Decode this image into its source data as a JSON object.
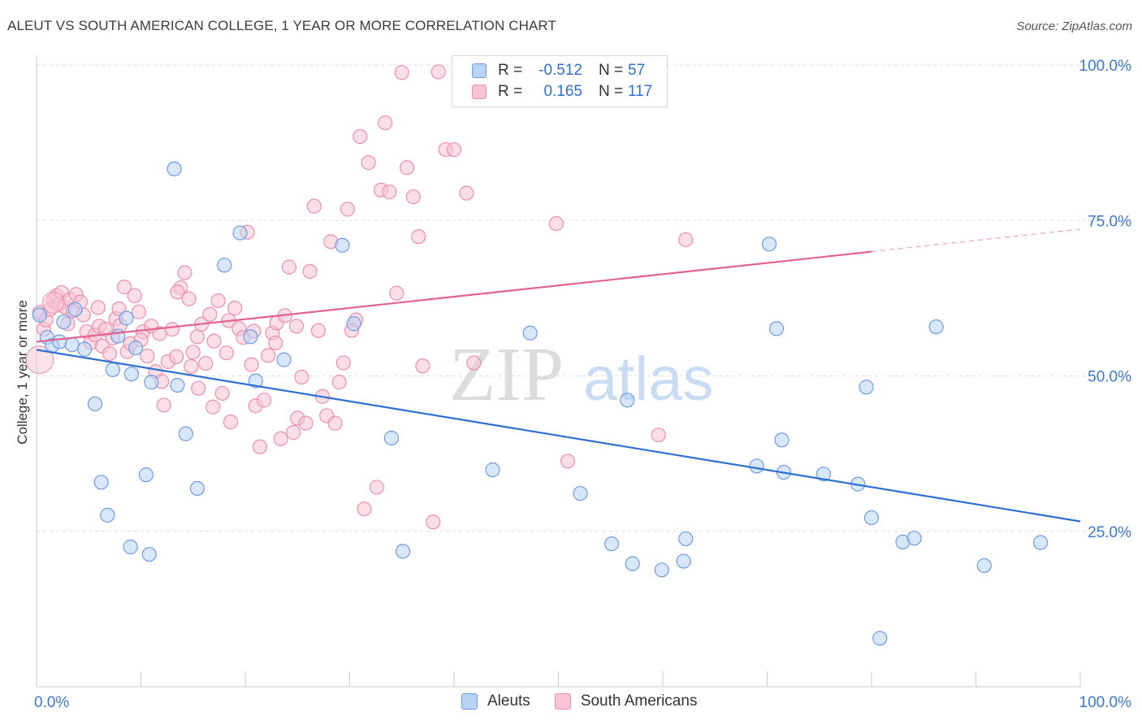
{
  "header": {
    "title": "ALEUT VS SOUTH AMERICAN COLLEGE, 1 YEAR OR MORE CORRELATION CHART",
    "source": "Source: ZipAtlas.com"
  },
  "watermark": {
    "zip": "ZIP",
    "atlas": "atlas"
  },
  "legend": {
    "series": [
      {
        "name": "Aleuts",
        "r_label": "R =",
        "r_value": "-0.512",
        "n_label": "N =",
        "n_value": "57",
        "fill": "#b9d3f5",
        "stroke": "#6d9be3"
      },
      {
        "name": "South Americans",
        "r_label": "R =",
        "r_value": "0.165",
        "n_label": "N =",
        "n_value": "117",
        "fill": "#f8c3d2",
        "stroke": "#ec8fac"
      }
    ]
  },
  "chart_data": {
    "type": "scatter",
    "title": "ALEUT VS SOUTH AMERICAN COLLEGE, 1 YEAR OR MORE CORRELATION CHART",
    "xlabel": "",
    "ylabel": "College, 1 year or more",
    "xlim": [
      0,
      100
    ],
    "ylim": [
      0,
      100
    ],
    "x_tick_labels": [
      "0.0%",
      "100.0%"
    ],
    "y_ticks": [
      25,
      50,
      75,
      100
    ],
    "y_tick_labels": [
      "25.0%",
      "50.0%",
      "75.0%",
      "100.0%"
    ],
    "grid": true,
    "series": [
      {
        "name": "Aleuts",
        "color": "#2e6fd4",
        "fill": "#b9d3f5",
        "stroke": "#6d9be3",
        "trend": {
          "x0": 0,
          "y0": 54.2,
          "x1": 100,
          "y1": 26.6,
          "solid_until": 100
        },
        "points": [
          [
            0.3,
            59.8
          ],
          [
            1.0,
            56.2
          ],
          [
            1.5,
            54.9
          ],
          [
            2.2,
            55.5
          ],
          [
            2.6,
            58.7
          ],
          [
            3.4,
            55.0
          ],
          [
            3.7,
            60.7
          ],
          [
            4.6,
            54.3
          ],
          [
            5.6,
            45.5
          ],
          [
            6.2,
            32.9
          ],
          [
            6.8,
            27.6
          ],
          [
            7.3,
            51.0
          ],
          [
            7.8,
            56.4
          ],
          [
            8.6,
            59.3
          ],
          [
            9.0,
            22.5
          ],
          [
            9.1,
            50.3
          ],
          [
            9.5,
            54.5
          ],
          [
            10.5,
            34.1
          ],
          [
            10.8,
            21.3
          ],
          [
            11.0,
            49.0
          ],
          [
            13.2,
            83.3
          ],
          [
            13.5,
            48.5
          ],
          [
            14.3,
            40.7
          ],
          [
            15.4,
            31.9
          ],
          [
            18.0,
            67.8
          ],
          [
            19.5,
            73.0
          ],
          [
            20.5,
            56.3
          ],
          [
            21.0,
            49.2
          ],
          [
            23.7,
            52.6
          ],
          [
            29.3,
            71.0
          ],
          [
            30.4,
            58.4
          ],
          [
            34.0,
            40.0
          ],
          [
            35.1,
            21.8
          ],
          [
            43.7,
            34.9
          ],
          [
            47.3,
            56.9
          ],
          [
            52.1,
            31.1
          ],
          [
            55.1,
            23.0
          ],
          [
            56.6,
            46.1
          ],
          [
            57.1,
            19.8
          ],
          [
            59.9,
            18.8
          ],
          [
            62.0,
            20.2
          ],
          [
            62.2,
            23.8
          ],
          [
            69.0,
            35.5
          ],
          [
            70.2,
            71.2
          ],
          [
            70.9,
            57.6
          ],
          [
            71.4,
            39.7
          ],
          [
            71.6,
            34.5
          ],
          [
            75.4,
            34.2
          ],
          [
            78.7,
            32.6
          ],
          [
            79.5,
            48.2
          ],
          [
            80.0,
            27.2
          ],
          [
            80.8,
            7.8
          ],
          [
            83.0,
            23.3
          ],
          [
            84.1,
            23.9
          ],
          [
            86.2,
            57.9
          ],
          [
            90.8,
            19.5
          ],
          [
            96.2,
            23.2
          ]
        ]
      },
      {
        "name": "South Americans",
        "color": "#e3628f",
        "fill": "#f8c3d2",
        "stroke": "#ec8fac",
        "trend": {
          "x0": 0,
          "y0": 55.5,
          "x1": 100,
          "y1": 73.6,
          "solid_until": 80
        },
        "points": [
          [
            0.3,
            60.2
          ],
          [
            0.7,
            57.5
          ],
          [
            0.9,
            59.0
          ],
          [
            1.3,
            60.7
          ],
          [
            1.6,
            62.1
          ],
          [
            1.9,
            62.9
          ],
          [
            2.1,
            61.5
          ],
          [
            2.4,
            63.4
          ],
          [
            2.7,
            61.1
          ],
          [
            3.0,
            58.4
          ],
          [
            3.2,
            62.3
          ],
          [
            3.5,
            60.5
          ],
          [
            3.8,
            63.1
          ],
          [
            4.2,
            61.9
          ],
          [
            4.5,
            59.8
          ],
          [
            4.8,
            57.1
          ],
          [
            5.2,
            55.4
          ],
          [
            5.6,
            56.6
          ],
          [
            6.0,
            58.0
          ],
          [
            6.3,
            54.8
          ],
          [
            6.6,
            57.5
          ],
          [
            7.0,
            53.6
          ],
          [
            7.3,
            56.1
          ],
          [
            7.6,
            59.2
          ],
          [
            8.0,
            58.1
          ],
          [
            8.4,
            64.3
          ],
          [
            8.7,
            53.9
          ],
          [
            9.0,
            55.2
          ],
          [
            9.4,
            62.9
          ],
          [
            9.8,
            60.3
          ],
          [
            10.2,
            57.1
          ],
          [
            10.6,
            53.2
          ],
          [
            11.0,
            58.0
          ],
          [
            11.4,
            50.7
          ],
          [
            11.8,
            56.8
          ],
          [
            12.2,
            45.3
          ],
          [
            12.6,
            52.3
          ],
          [
            13.0,
            57.5
          ],
          [
            13.4,
            53.1
          ],
          [
            13.8,
            64.2
          ],
          [
            14.2,
            66.6
          ],
          [
            14.6,
            62.4
          ],
          [
            15.0,
            53.8
          ],
          [
            15.4,
            56.3
          ],
          [
            15.8,
            58.3
          ],
          [
            16.2,
            52.0
          ],
          [
            16.6,
            59.9
          ],
          [
            17.0,
            55.6
          ],
          [
            17.4,
            62.1
          ],
          [
            17.8,
            47.2
          ],
          [
            18.2,
            53.7
          ],
          [
            18.6,
            42.6
          ],
          [
            19.0,
            60.9
          ],
          [
            19.4,
            57.6
          ],
          [
            19.8,
            56.2
          ],
          [
            20.2,
            73.1
          ],
          [
            20.6,
            51.8
          ],
          [
            21.0,
            45.2
          ],
          [
            21.4,
            38.6
          ],
          [
            21.8,
            46.1
          ],
          [
            22.2,
            53.3
          ],
          [
            22.6,
            56.9
          ],
          [
            23.0,
            58.5
          ],
          [
            23.4,
            39.9
          ],
          [
            23.8,
            59.7
          ],
          [
            24.2,
            67.5
          ],
          [
            24.6,
            40.9
          ],
          [
            25.0,
            43.2
          ],
          [
            25.4,
            49.8
          ],
          [
            25.8,
            42.4
          ],
          [
            26.2,
            66.8
          ],
          [
            26.6,
            77.3
          ],
          [
            27.0,
            57.3
          ],
          [
            27.4,
            46.7
          ],
          [
            27.8,
            43.6
          ],
          [
            28.2,
            71.6
          ],
          [
            28.6,
            42.4
          ],
          [
            29.0,
            49.0
          ],
          [
            29.4,
            52.1
          ],
          [
            29.8,
            76.8
          ],
          [
            30.2,
            57.3
          ],
          [
            30.6,
            59.0
          ],
          [
            31.0,
            88.5
          ],
          [
            31.4,
            28.6
          ],
          [
            31.8,
            84.3
          ],
          [
            32.6,
            32.1
          ],
          [
            33.0,
            79.9
          ],
          [
            33.4,
            90.7
          ],
          [
            33.8,
            79.6
          ],
          [
            34.5,
            63.3
          ],
          [
            35.0,
            98.8
          ],
          [
            35.5,
            83.5
          ],
          [
            36.1,
            78.8
          ],
          [
            36.6,
            72.4
          ],
          [
            37.0,
            51.6
          ],
          [
            38.0,
            26.5
          ],
          [
            38.5,
            98.9
          ],
          [
            39.2,
            86.4
          ],
          [
            40.0,
            86.4
          ],
          [
            41.2,
            79.4
          ],
          [
            41.9,
            52.1
          ],
          [
            49.8,
            74.5
          ],
          [
            50.9,
            36.3
          ],
          [
            59.6,
            40.5
          ],
          [
            62.2,
            71.9
          ],
          [
            13.5,
            63.5
          ],
          [
            15.5,
            48.0
          ],
          [
            5.9,
            61.0
          ],
          [
            7.9,
            60.8
          ],
          [
            10.0,
            55.8
          ],
          [
            12.0,
            49.1
          ],
          [
            14.8,
            51.5
          ],
          [
            16.9,
            45.0
          ],
          [
            18.4,
            58.9
          ],
          [
            20.8,
            57.2
          ],
          [
            22.9,
            55.3
          ],
          [
            24.9,
            58.0
          ]
        ]
      }
    ]
  }
}
